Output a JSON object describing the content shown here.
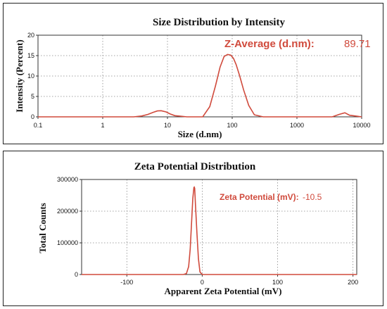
{
  "chart_data": [
    {
      "type": "line",
      "title": "Size Distribution by Intensity",
      "xlabel": "Size (d.nm)",
      "ylabel": "Intensity (Percent)",
      "x_scale": "log",
      "xlim": [
        0.1,
        10000
      ],
      "ylim": [
        0,
        20
      ],
      "x_ticks": [
        "0.1",
        "1",
        "10",
        "100",
        "1000",
        "10000"
      ],
      "y_ticks": [
        "0",
        "5",
        "10",
        "15",
        "20"
      ],
      "grid": true,
      "annotation": {
        "label": "Z-Average (d.nm):",
        "value": "89.71"
      },
      "series": [
        {
          "color": "#d04a3c",
          "x": [
            0.1,
            1,
            3,
            4,
            5,
            6,
            7,
            8,
            9.5,
            11,
            13,
            20,
            35,
            45,
            55,
            65,
            75,
            85,
            95,
            105,
            115,
            130,
            150,
            180,
            220,
            300,
            1000,
            3500,
            4500,
            5500,
            6500,
            10000
          ],
          "y": [
            0,
            0,
            0,
            0.2,
            0.6,
            1.1,
            1.45,
            1.5,
            1.2,
            0.7,
            0.3,
            0,
            0,
            2.5,
            7.5,
            12.2,
            14.8,
            15.3,
            15.1,
            14.3,
            12.8,
            10.1,
            6.6,
            2.8,
            0.5,
            0,
            0,
            0,
            0.6,
            1.0,
            0.4,
            0
          ]
        }
      ]
    },
    {
      "type": "line",
      "title": "Zeta Potential Distribution",
      "xlabel": "Apparent Zeta Potential (mV)",
      "ylabel": "Total Counts",
      "xlim": [
        -160,
        205
      ],
      "ylim": [
        0,
        300000
      ],
      "x_ticks": [
        "-100",
        "0",
        "100",
        "200"
      ],
      "y_ticks": [
        "0",
        "100000",
        "200000",
        "300000"
      ],
      "grid": true,
      "annotation": {
        "label": "Zeta Potential (mV):",
        "value": "-10.5"
      },
      "series": [
        {
          "color": "#d04a3c",
          "x": [
            -160,
            -25,
            -21,
            -18,
            -16,
            -14,
            -12.5,
            -11,
            -10.5,
            -10,
            -9,
            -7,
            -5,
            -3,
            0,
            205
          ],
          "y": [
            0,
            0,
            3000,
            25000,
            80000,
            170000,
            240000,
            275000,
            276000,
            272000,
            220000,
            130000,
            50000,
            8000,
            0,
            0
          ]
        }
      ]
    }
  ]
}
